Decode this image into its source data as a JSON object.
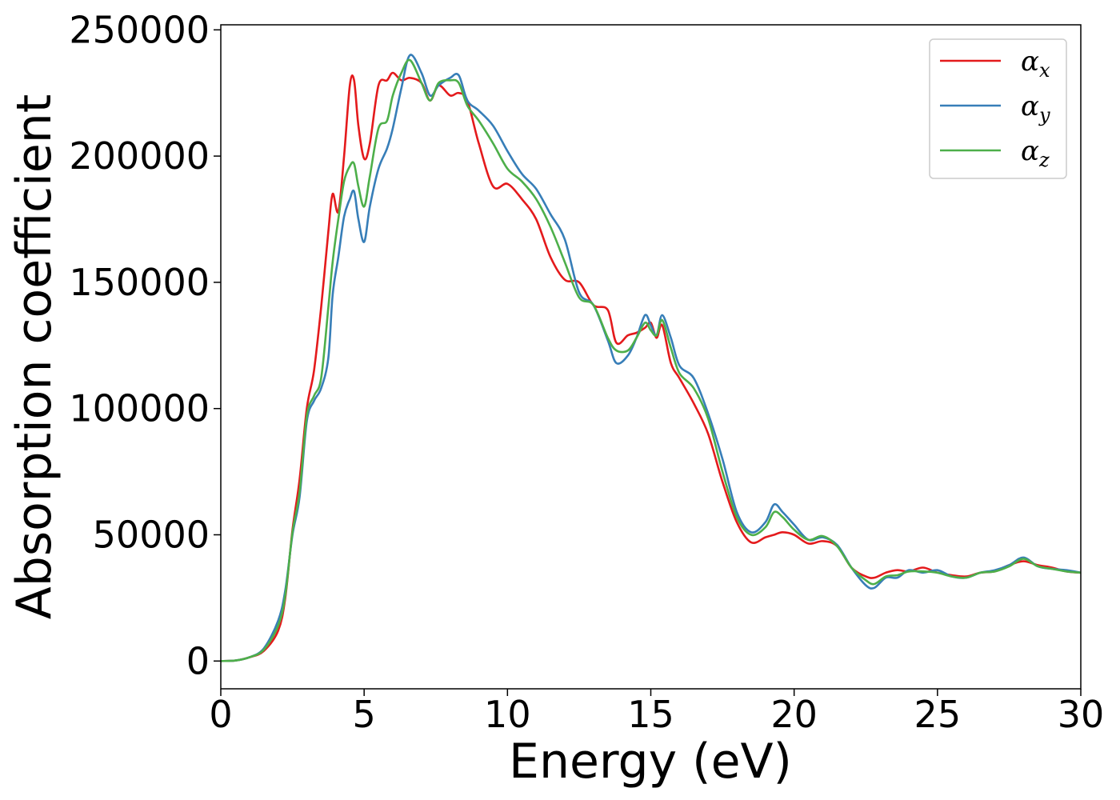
{
  "chart_data": {
    "type": "line",
    "xlabel": "Energy (eV)",
    "ylabel": "Absorption coefficient",
    "xlim": [
      0,
      30
    ],
    "ylim": [
      -11000,
      252000
    ],
    "xticks": [
      0,
      5,
      10,
      15,
      20,
      25,
      30
    ],
    "yticks": [
      0,
      50000,
      100000,
      150000,
      200000,
      250000
    ],
    "grid": false,
    "legend_position": "top-right",
    "x": [
      0,
      0.5,
      1.0,
      1.5,
      2.0,
      2.25,
      2.5,
      2.75,
      3.0,
      3.25,
      3.5,
      3.75,
      3.9,
      4.1,
      4.3,
      4.5,
      4.65,
      4.8,
      5.0,
      5.2,
      5.5,
      5.8,
      6.0,
      6.3,
      6.6,
      7.0,
      7.3,
      7.6,
      8.0,
      8.3,
      8.6,
      9.0,
      9.5,
      10.0,
      10.5,
      11.0,
      11.5,
      12.0,
      12.5,
      13.0,
      13.5,
      13.8,
      14.2,
      14.5,
      14.8,
      15.0,
      15.2,
      15.4,
      15.7,
      16.0,
      16.5,
      17.0,
      17.5,
      18.0,
      18.5,
      19.0,
      19.3,
      19.6,
      20.0,
      20.5,
      21.0,
      21.5,
      22.0,
      22.5,
      22.8,
      23.2,
      23.6,
      24.0,
      24.5,
      25.0,
      25.5,
      26.0,
      26.5,
      27.0,
      27.5,
      28.0,
      28.5,
      29.0,
      29.5,
      30.0
    ],
    "series": [
      {
        "name": "α_x",
        "color": "#e41a1c",
        "values": [
          0,
          200,
          1500,
          4000,
          12000,
          25000,
          52000,
          72000,
          100000,
          115000,
          140000,
          170000,
          185000,
          178000,
          200000,
          228000,
          230000,
          212000,
          199000,
          205000,
          228000,
          230000,
          233000,
          230000,
          231000,
          229000,
          222000,
          228000,
          224000,
          225000,
          222000,
          205000,
          188000,
          189000,
          183000,
          175000,
          160000,
          151000,
          150000,
          141000,
          139000,
          126000,
          129000,
          130000,
          132000,
          134000,
          128000,
          133000,
          118000,
          112000,
          102000,
          90000,
          71000,
          55000,
          47000,
          49000,
          50000,
          51000,
          50000,
          46500,
          47500,
          45500,
          37000,
          33500,
          33000,
          35000,
          36000,
          35500,
          37000,
          35000,
          34000,
          33500,
          35000,
          35500,
          38000,
          39500,
          38000,
          37000,
          35500,
          35000
        ]
      },
      {
        "name": "α_y",
        "color": "#377eb8",
        "values": [
          0,
          200,
          1500,
          5000,
          16000,
          28000,
          50000,
          65000,
          95000,
          103000,
          108000,
          120000,
          145000,
          160000,
          176000,
          183000,
          186000,
          175000,
          166000,
          180000,
          195000,
          203000,
          211000,
          227000,
          240000,
          233000,
          224000,
          228000,
          231000,
          232000,
          222000,
          218000,
          212000,
          202000,
          193000,
          187000,
          177000,
          167000,
          146000,
          141000,
          127000,
          118000,
          121000,
          128000,
          137000,
          133000,
          129000,
          137000,
          128000,
          117000,
          112000,
          98000,
          80000,
          59000,
          51000,
          55000,
          62000,
          59000,
          54000,
          48000,
          49000,
          46000,
          37000,
          30000,
          29000,
          33000,
          33000,
          36000,
          35000,
          36000,
          33500,
          33000,
          35000,
          36000,
          38000,
          41000,
          37500,
          36500,
          36000,
          35000
        ]
      },
      {
        "name": "α_z",
        "color": "#4daf4a",
        "values": [
          0,
          200,
          1500,
          4500,
          14000,
          26000,
          51000,
          67000,
          97000,
          105000,
          112000,
          140000,
          158000,
          175000,
          190000,
          196000,
          197000,
          188000,
          180000,
          192000,
          211000,
          214000,
          224000,
          233000,
          238000,
          229000,
          222000,
          229000,
          230000,
          229000,
          220000,
          214000,
          205000,
          195000,
          190000,
          183000,
          172000,
          158000,
          144000,
          141000,
          128000,
          123000,
          123000,
          128000,
          134000,
          131000,
          129000,
          135000,
          124000,
          114000,
          108000,
          96000,
          75000,
          57000,
          50000,
          53000,
          59000,
          57000,
          52000,
          48000,
          49500,
          45500,
          37000,
          32000,
          30500,
          33500,
          34000,
          35500,
          35500,
          35000,
          33500,
          33000,
          35000,
          35500,
          37500,
          40500,
          37500,
          36500,
          35500,
          35000
        ]
      }
    ]
  }
}
